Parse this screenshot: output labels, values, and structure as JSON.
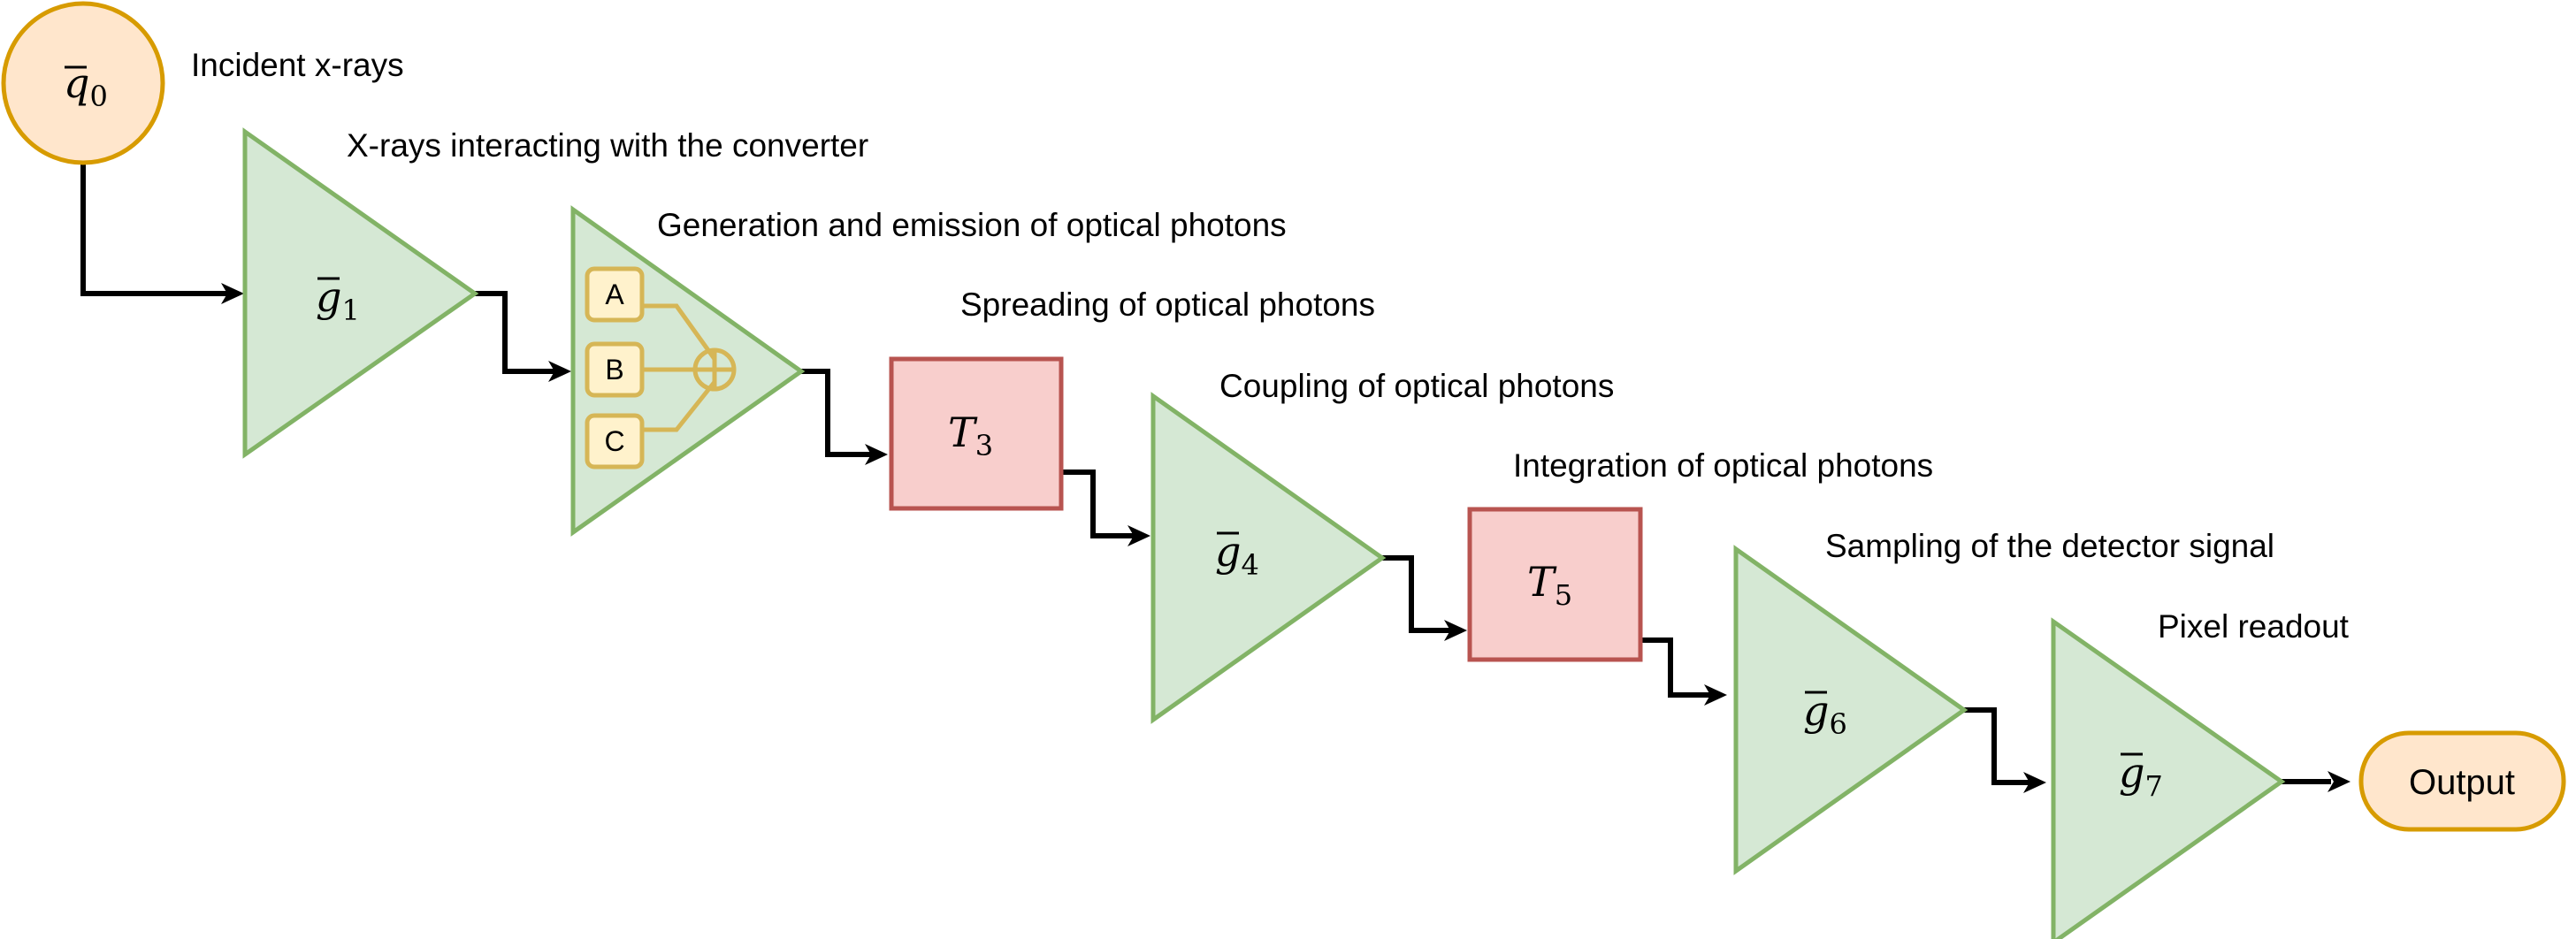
{
  "labels": {
    "incident": "Incident x-rays",
    "stage1": "X-rays interacting with the converter",
    "stage2": "Generation and emission of optical photons",
    "stage3": "Spreading of optical photons",
    "stage4": "Coupling of optical photons",
    "stage5": "Integration of optical photons",
    "stage6": "Sampling of the detector signal",
    "stage7": "Pixel readout"
  },
  "nodes": {
    "q0": {
      "sym": "q",
      "sub": "0"
    },
    "g1": {
      "sym": "g",
      "sub": "1"
    },
    "t3": {
      "sym": "T",
      "sub": "3"
    },
    "g4": {
      "sym": "g",
      "sub": "4"
    },
    "t5": {
      "sym": "T",
      "sub": "5"
    },
    "g6": {
      "sym": "g",
      "sub": "6"
    },
    "g7": {
      "sym": "g",
      "sub": "7"
    },
    "output": "Output"
  },
  "sub_boxes": {
    "a": "A",
    "b": "B",
    "c": "C"
  },
  "colors": {
    "gain_fill": "#d5e8d4",
    "gain_stroke": "#82b366",
    "transfer_fill": "#f8cecc",
    "transfer_stroke": "#b85450",
    "io_fill": "#ffe6cc",
    "io_stroke": "#d79b00",
    "sub_fill": "#fff2cc",
    "sub_stroke": "#d6b656"
  }
}
